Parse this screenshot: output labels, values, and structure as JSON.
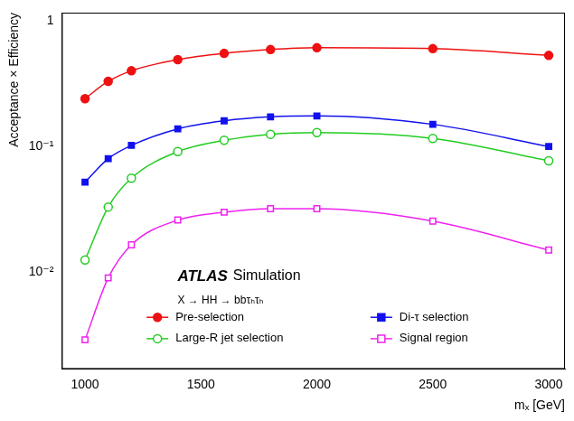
{
  "chart_data": {
    "type": "line",
    "x_label": "mₓ [GeV]",
    "y_label": "Acceptance × Efficiency",
    "annotations": [
      "ATLAS",
      "Simulation",
      "X → HH → bbτₕτₕ"
    ],
    "x": [
      1000,
      1100,
      1200,
      1400,
      1600,
      1800,
      2000,
      2500,
      3000
    ],
    "series": [
      {
        "name": "Pre-selection",
        "color": "#ee1111",
        "marker": "circle",
        "values": [
          0.24,
          0.33,
          0.4,
          0.49,
          0.55,
          0.59,
          0.61,
          0.6,
          0.53
        ]
      },
      {
        "name": "Di-τ selection",
        "color": "#1111ee",
        "marker": "square",
        "values": [
          0.052,
          0.08,
          0.102,
          0.138,
          0.16,
          0.172,
          0.175,
          0.15,
          0.1
        ]
      },
      {
        "name": "Large-R jet selection",
        "color": "#22cc22",
        "marker": "open_circle",
        "values": [
          0.0125,
          0.033,
          0.056,
          0.091,
          0.112,
          0.125,
          0.129,
          0.116,
          0.077
        ]
      },
      {
        "name": "Signal region",
        "color": "#ee22ee",
        "marker": "open_square",
        "values": [
          0.0029,
          0.009,
          0.0165,
          0.026,
          0.03,
          0.032,
          0.032,
          0.0255,
          0.015
        ]
      }
    ],
    "xlim": [
      900,
      3070
    ],
    "xticks": [
      1000,
      1500,
      2000,
      2500,
      3000
    ],
    "ylim": [
      0.0017,
      1.16
    ],
    "yticks": [
      {
        "value": 0.01,
        "label": "10⁻²"
      },
      {
        "value": 0.1,
        "label": "10⁻¹"
      },
      1
    ],
    "log": "y",
    "grid": false,
    "legend": "bottom"
  }
}
